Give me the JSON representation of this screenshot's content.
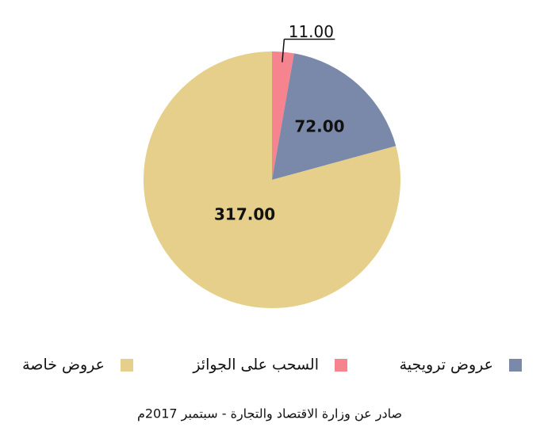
{
  "chart_data": {
    "type": "pie",
    "categories": [
      "السحب على الجوائز",
      "عروض ترويجية",
      "عروض خاصة"
    ],
    "values": [
      11,
      72,
      317
    ],
    "value_labels": [
      "11.00",
      "72.00",
      "317.00"
    ],
    "colors": [
      "#f6848f",
      "#7a89aa",
      "#e5cf8a"
    ],
    "source": "صادر عن وزارة الاقتصاد والتجارة - سبتمبر 2017م"
  }
}
